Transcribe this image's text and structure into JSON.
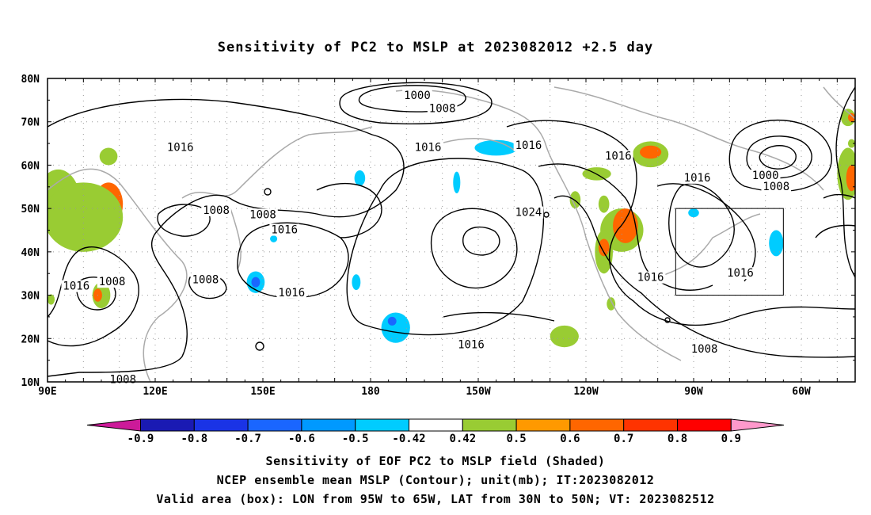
{
  "title": "Sensitivity of PC2 to MSLP at 2023082012 +2.5 day",
  "map": {
    "lat_labels": [
      "80N",
      "70N",
      "60N",
      "50N",
      "40N",
      "30N",
      "20N",
      "10N"
    ],
    "lat_values": [
      80,
      70,
      60,
      50,
      40,
      30,
      20,
      10
    ],
    "lon_labels": [
      "90E",
      "120E",
      "150E",
      "180",
      "150W",
      "120W",
      "90W",
      "60W"
    ],
    "lon_values": [
      90,
      120,
      150,
      180,
      210,
      240,
      270,
      300
    ],
    "lon_range": [
      90,
      315
    ],
    "lat_range": [
      10,
      80
    ],
    "valid_box": {
      "lon": [
        265,
        295
      ],
      "lat": [
        30,
        50
      ]
    },
    "contour_labels": [
      {
        "text": "1000",
        "lon": 193,
        "lat": 76
      },
      {
        "text": "1008",
        "lon": 200,
        "lat": 73
      },
      {
        "text": "1016",
        "lon": 127,
        "lat": 64
      },
      {
        "text": "1016",
        "lon": 196,
        "lat": 64
      },
      {
        "text": "1016",
        "lon": 224,
        "lat": 64.5
      },
      {
        "text": "1016",
        "lon": 249,
        "lat": 62
      },
      {
        "text": "1016",
        "lon": 271,
        "lat": 57
      },
      {
        "text": "1000",
        "lon": 290,
        "lat": 57.5
      },
      {
        "text": "1008",
        "lon": 293,
        "lat": 55
      },
      {
        "text": "1008",
        "lon": 137,
        "lat": 49.5
      },
      {
        "text": "1008",
        "lon": 150,
        "lat": 48.5
      },
      {
        "text": "1016",
        "lon": 156,
        "lat": 45
      },
      {
        "text": "1024",
        "lon": 224,
        "lat": 49
      },
      {
        "text": "1016",
        "lon": 258,
        "lat": 34
      },
      {
        "text": "1016",
        "lon": 283,
        "lat": 35
      },
      {
        "text": "1016",
        "lon": 98,
        "lat": 32
      },
      {
        "text": "1008",
        "lon": 108,
        "lat": 33
      },
      {
        "text": "1008",
        "lon": 134,
        "lat": 33.5
      },
      {
        "text": "1016",
        "lon": 158,
        "lat": 30.5
      },
      {
        "text": "1016",
        "lon": 208,
        "lat": 18.5
      },
      {
        "text": "1008",
        "lon": 273,
        "lat": 17.5
      },
      {
        "text": "1008",
        "lon": 111,
        "lat": 10.5
      }
    ],
    "sensitivity_blobs": [
      {
        "lon": 93,
        "lat": 52,
        "rx": 6,
        "ry": 7,
        "level": "0.5"
      },
      {
        "lon": 96,
        "lat": 49,
        "rx": 5,
        "ry": 5,
        "level": "0.6"
      },
      {
        "lon": 101,
        "lat": 49.5,
        "rx": 6,
        "ry": 4,
        "level": "0.6"
      },
      {
        "lon": 107,
        "lat": 51,
        "rx": 4,
        "ry": 5,
        "level": "0.6"
      },
      {
        "lon": 100,
        "lat": 48,
        "rx": 11,
        "ry": 8,
        "level": "0.5"
      },
      {
        "lon": 107,
        "lat": 62,
        "rx": 2.5,
        "ry": 2,
        "level": "0.5"
      },
      {
        "lon": 105,
        "lat": 30,
        "rx": 2.5,
        "ry": 3,
        "level": "0.5"
      },
      {
        "lon": 104,
        "lat": 30,
        "rx": 1.2,
        "ry": 1.5,
        "level": "0.6"
      },
      {
        "lon": 91,
        "lat": 29,
        "rx": 1,
        "ry": 1.2,
        "level": "0.5"
      },
      {
        "lon": 148,
        "lat": 33,
        "rx": 2.5,
        "ry": 2.5,
        "level": "-0.5"
      },
      {
        "lon": 148,
        "lat": 33,
        "rx": 1.2,
        "ry": 1.2,
        "level": "-0.6"
      },
      {
        "lon": 177,
        "lat": 57,
        "rx": 1.5,
        "ry": 1.8,
        "level": "-0.5"
      },
      {
        "lon": 153,
        "lat": 43,
        "rx": 1,
        "ry": 0.8,
        "level": "-0.5"
      },
      {
        "lon": 176,
        "lat": 33,
        "rx": 1.2,
        "ry": 1.8,
        "level": "-0.5"
      },
      {
        "lon": 187,
        "lat": 22.5,
        "rx": 4,
        "ry": 3.5,
        "level": "-0.5"
      },
      {
        "lon": 186,
        "lat": 24,
        "rx": 1.2,
        "ry": 1,
        "level": "-0.6"
      },
      {
        "lon": 204,
        "lat": 56,
        "rx": 1,
        "ry": 2.5,
        "level": "-0.5"
      },
      {
        "lon": 215,
        "lat": 64,
        "rx": 6,
        "ry": 1.8,
        "level": "-0.5"
      },
      {
        "lon": 234,
        "lat": 20.5,
        "rx": 4,
        "ry": 2.5,
        "level": "0.5"
      },
      {
        "lon": 258,
        "lat": 62.5,
        "rx": 5,
        "ry": 3,
        "level": "0.5"
      },
      {
        "lon": 258,
        "lat": 63,
        "rx": 3,
        "ry": 1.5,
        "level": "0.6"
      },
      {
        "lon": 243,
        "lat": 58,
        "rx": 4,
        "ry": 1.5,
        "level": "0.5"
      },
      {
        "lon": 237,
        "lat": 52,
        "rx": 1.5,
        "ry": 2,
        "level": "0.5"
      },
      {
        "lon": 245,
        "lat": 51,
        "rx": 1.5,
        "ry": 2,
        "level": "0.5"
      },
      {
        "lon": 250,
        "lat": 45,
        "rx": 6,
        "ry": 5,
        "level": "0.5"
      },
      {
        "lon": 251,
        "lat": 46,
        "rx": 3.5,
        "ry": 4,
        "level": "0.6"
      },
      {
        "lon": 245,
        "lat": 40,
        "rx": 2.5,
        "ry": 5,
        "level": "0.5"
      },
      {
        "lon": 245,
        "lat": 41,
        "rx": 1.5,
        "ry": 2,
        "level": "0.6"
      },
      {
        "lon": 247,
        "lat": 28,
        "rx": 1.2,
        "ry": 1.5,
        "level": "0.5"
      },
      {
        "lon": 270,
        "lat": 49,
        "rx": 1.5,
        "ry": 1,
        "level": "-0.5"
      },
      {
        "lon": 293,
        "lat": 42,
        "rx": 2,
        "ry": 3,
        "level": "-0.5"
      },
      {
        "lon": 313,
        "lat": 58,
        "rx": 3,
        "ry": 6,
        "level": "0.5"
      },
      {
        "lon": 314,
        "lat": 57,
        "rx": 1.5,
        "ry": 3,
        "level": "0.6"
      },
      {
        "lon": 313,
        "lat": 71,
        "rx": 2,
        "ry": 2,
        "level": "0.5"
      },
      {
        "lon": 314,
        "lat": 71,
        "rx": 1,
        "ry": 1,
        "level": "0.6"
      },
      {
        "lon": 314,
        "lat": 65,
        "rx": 1,
        "ry": 1,
        "level": "0.5"
      }
    ]
  },
  "colorbar": {
    "labels": [
      "-0.9",
      "-0.8",
      "-0.7",
      "-0.6",
      "-0.5",
      "-0.42",
      "0.42",
      "0.5",
      "0.6",
      "0.7",
      "0.8",
      "0.9"
    ],
    "colors": [
      "#cc1a99",
      "#1a1ab3",
      "#1a33e6",
      "#1a66ff",
      "#0099ff",
      "#00ccff",
      "#ffffff",
      "#99cc33",
      "#ff9900",
      "#ff6600",
      "#ff3300",
      "#ff0000",
      "#ff99cc"
    ],
    "level_colors": {
      "-0.6": "#1a66ff",
      "-0.5": "#00ccff",
      "0.5": "#99cc33",
      "0.6": "#ff6600"
    }
  },
  "captions": [
    "Sensitivity of EOF PC2 to MSLP field (Shaded)",
    "NCEP ensemble mean MSLP (Contour); unit(mb); IT:2023082012",
    "Valid area (box): LON from 95W to 65W, LAT from 30N to 50N; VT: 2023082512"
  ]
}
